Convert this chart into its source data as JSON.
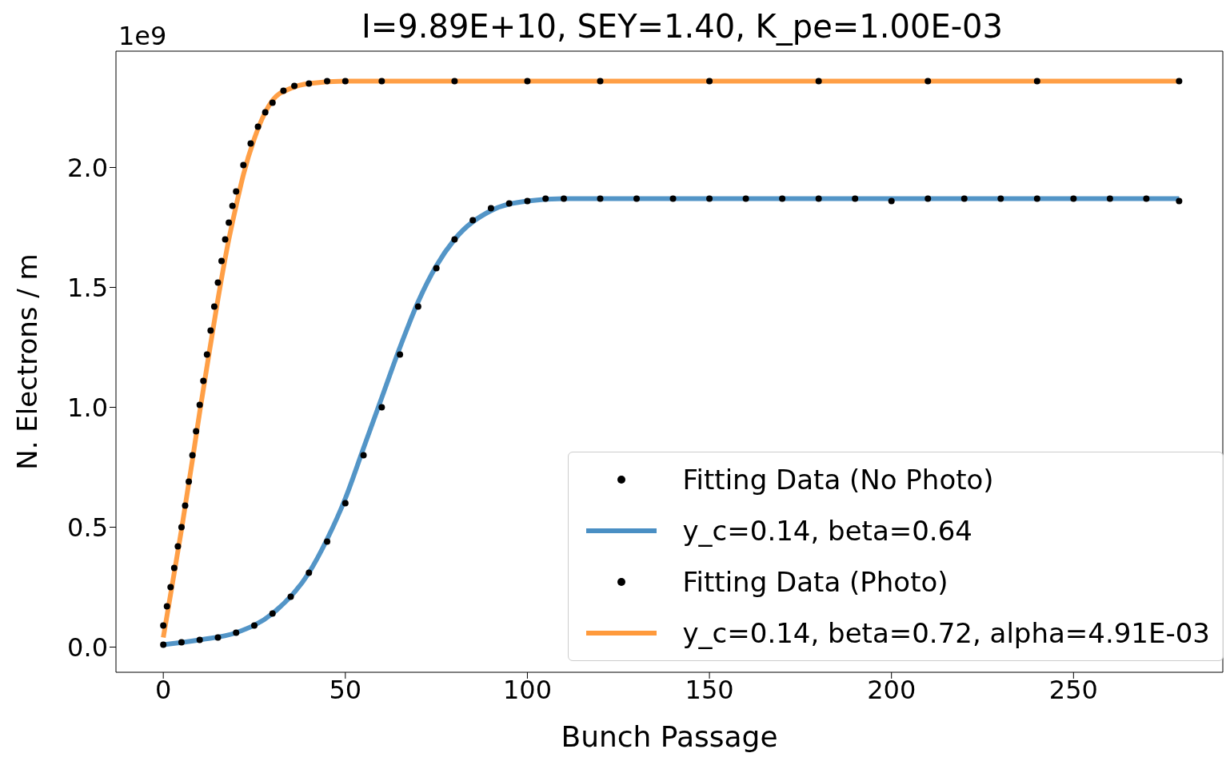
{
  "chart_data": {
    "type": "line",
    "title": "I=9.89E+10, SEY=1.40, K_pe=1.00E-03",
    "xlabel": "Bunch Passage",
    "ylabel": "N. Electrons / m",
    "annotations": [
      "1e9"
    ],
    "xlim": [
      -13,
      291
    ],
    "ylim": [
      -0.105,
      2.485
    ],
    "xticks": [
      0,
      50,
      100,
      150,
      200,
      250
    ],
    "yticks": [
      {
        "value": 0,
        "label": "0.0"
      },
      0.5,
      {
        "value": 1,
        "label": "1.0"
      },
      1.5,
      {
        "value": 2,
        "label": "2.0"
      }
    ],
    "grid": false,
    "legend": "bottom right",
    "series": [
      {
        "type": "scatter",
        "name": "Fitting Data (No Photo)",
        "color": "#000000",
        "marker": "circle",
        "x": [
          0,
          5,
          10,
          15,
          20,
          25,
          30,
          35,
          40,
          45,
          50,
          55,
          60,
          65,
          70,
          75,
          80,
          85,
          90,
          95,
          100,
          105,
          110,
          120,
          130,
          140,
          150,
          160,
          170,
          180,
          190,
          200,
          210,
          220,
          230,
          240,
          250,
          260,
          270,
          279
        ],
        "values": [
          0.01,
          0.02,
          0.03,
          0.04,
          0.06,
          0.09,
          0.14,
          0.21,
          0.31,
          0.44,
          0.6,
          0.8,
          1.0,
          1.22,
          1.42,
          1.58,
          1.7,
          1.78,
          1.83,
          1.85,
          1.86,
          1.87,
          1.87,
          1.87,
          1.87,
          1.87,
          1.87,
          1.87,
          1.87,
          1.87,
          1.87,
          1.86,
          1.87,
          1.87,
          1.87,
          1.87,
          1.87,
          1.87,
          1.87,
          1.86
        ]
      },
      {
        "name": "y_c=0.14, beta=0.64",
        "color": "#4a8fc4",
        "line_style": "solid",
        "x": [
          0,
          10,
          20,
          30,
          40,
          45,
          50,
          55,
          60,
          65,
          70,
          75,
          80,
          90,
          100,
          110,
          120,
          150,
          200,
          250,
          279
        ],
        "values": [
          0.01,
          0.03,
          0.06,
          0.14,
          0.31,
          0.45,
          0.62,
          0.83,
          1.04,
          1.25,
          1.44,
          1.59,
          1.7,
          1.82,
          1.86,
          1.87,
          1.87,
          1.87,
          1.87,
          1.87,
          1.87
        ]
      },
      {
        "type": "scatter",
        "name": "Fitting Data (Photo)",
        "color": "#000000",
        "marker": "circle",
        "x": [
          0,
          1,
          2,
          3,
          4,
          5,
          6,
          7,
          8,
          9,
          10,
          11,
          12,
          13,
          14,
          15,
          16,
          17,
          18,
          19,
          20,
          22,
          24,
          26,
          28,
          30,
          33,
          36,
          40,
          45,
          50,
          60,
          80,
          100,
          120,
          150,
          180,
          210,
          240,
          279
        ],
        "values": [
          0.09,
          0.17,
          0.25,
          0.33,
          0.42,
          0.5,
          0.59,
          0.69,
          0.8,
          0.9,
          1.01,
          1.11,
          1.22,
          1.32,
          1.42,
          1.52,
          1.61,
          1.7,
          1.77,
          1.84,
          1.9,
          2.01,
          2.1,
          2.17,
          2.23,
          2.27,
          2.32,
          2.34,
          2.35,
          2.36,
          2.36,
          2.36,
          2.36,
          2.36,
          2.36,
          2.36,
          2.36,
          2.36,
          2.36,
          2.36
        ]
      },
      {
        "name": "y_c=0.14, beta=0.72, alpha=4.91E-03",
        "color": "#ff9a3c",
        "line_style": "solid",
        "x": [
          0,
          2,
          5,
          8,
          10,
          12,
          15,
          18,
          20,
          22,
          25,
          28,
          30,
          35,
          40,
          50,
          100,
          150,
          200,
          250,
          279
        ],
        "values": [
          0.04,
          0.22,
          0.49,
          0.78,
          0.98,
          1.17,
          1.45,
          1.7,
          1.84,
          1.97,
          2.12,
          2.23,
          2.28,
          2.33,
          2.35,
          2.36,
          2.36,
          2.36,
          2.36,
          2.36,
          2.36
        ]
      }
    ]
  }
}
